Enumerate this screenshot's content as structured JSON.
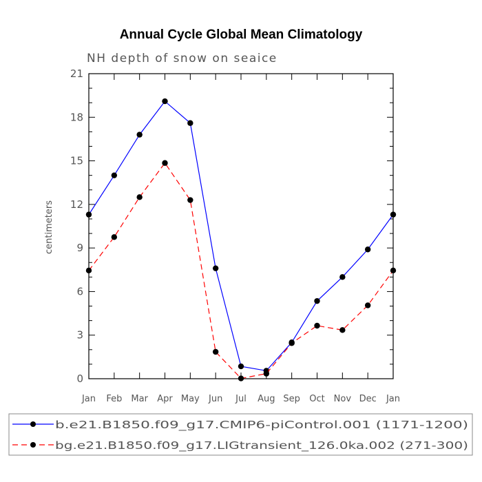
{
  "chart_data": {
    "type": "line",
    "title": "Annual Cycle Global Mean Climatology",
    "subtitle": "NH depth of snow on seaice",
    "xlabel": "",
    "ylabel": "centimeters",
    "categories": [
      "Jan",
      "Feb",
      "Mar",
      "Apr",
      "May",
      "Jun",
      "Jul",
      "Aug",
      "Sep",
      "Oct",
      "Nov",
      "Dec",
      "Jan"
    ],
    "ylim": [
      0,
      21
    ],
    "yticks": [
      "0",
      "3",
      "6",
      "9",
      "12",
      "15",
      "18",
      "21"
    ],
    "grid": false,
    "legend_position": "bottom",
    "series": [
      {
        "name": "b.e21.B1850.f09_g17.CMIP6-piControl.001 (1171-1200)",
        "color": "#0000ff",
        "dash": "solid",
        "values": [
          11.3,
          14.0,
          16.8,
          19.1,
          17.6,
          7.6,
          0.85,
          0.55,
          2.5,
          5.35,
          7.0,
          8.9,
          11.3
        ]
      },
      {
        "name": "bg.e21.B1850.f09_g17.LIGtransient_126.0ka.002 (271-300)",
        "color": "#ff0000",
        "dash": "dashed",
        "values": [
          7.45,
          9.75,
          12.5,
          14.85,
          12.3,
          1.85,
          0.02,
          0.35,
          2.45,
          3.65,
          3.35,
          5.05,
          7.45
        ]
      }
    ]
  }
}
